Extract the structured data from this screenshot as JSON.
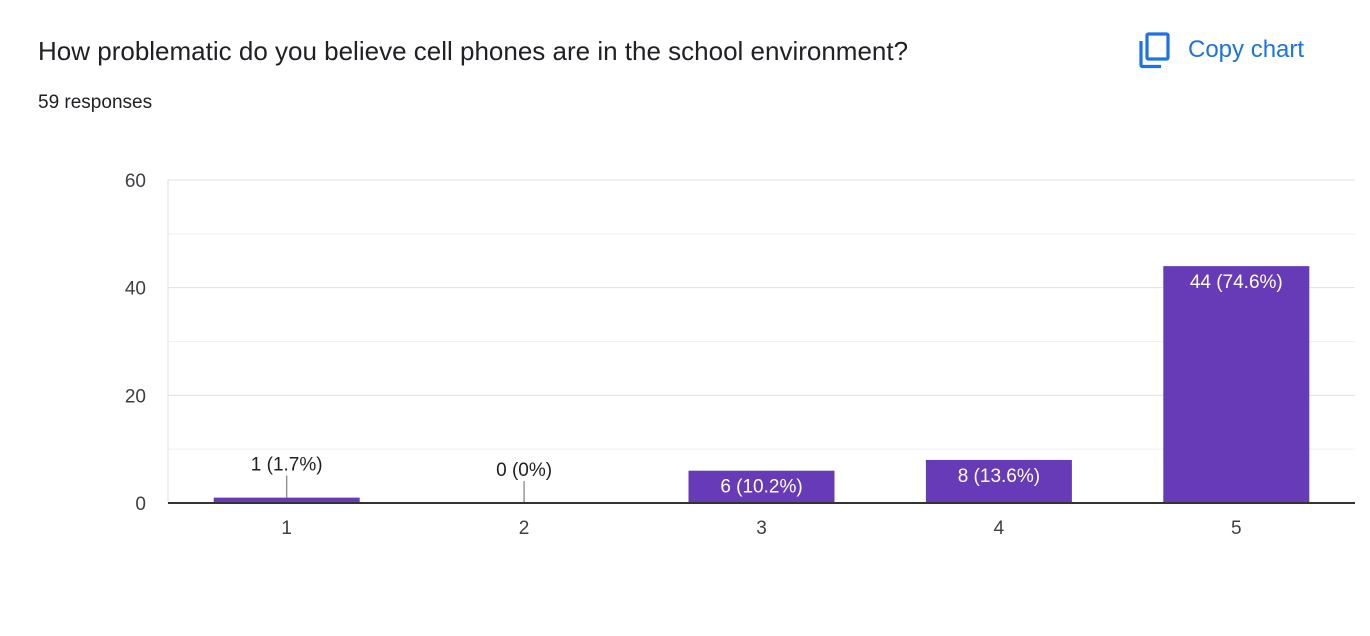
{
  "header": {
    "title": "How problematic do you believe cell phones are in the school environment?",
    "responses": "59 responses",
    "copy_label": "Copy chart",
    "copy_icon": "copy-icon"
  },
  "colors": {
    "bar": "#673ab7",
    "accent": "#1a73e8",
    "grid": "#e0e0e0",
    "axis": "#333333"
  },
  "chart_data": {
    "type": "bar",
    "categories": [
      "1",
      "2",
      "3",
      "4",
      "5"
    ],
    "values": [
      1,
      0,
      6,
      8,
      44
    ],
    "data_labels": [
      "1 (1.7%)",
      "0 (0%)",
      "6 (10.2%)",
      "8 (13.6%)",
      "44 (74.6%)"
    ],
    "ylim": [
      0,
      60
    ],
    "yticks": [
      "0",
      "20",
      "40",
      "60"
    ],
    "ytick_values": [
      0,
      20,
      40,
      60
    ],
    "minor_gridlines": [
      10,
      30,
      50
    ],
    "grid": true,
    "legend": "none"
  }
}
